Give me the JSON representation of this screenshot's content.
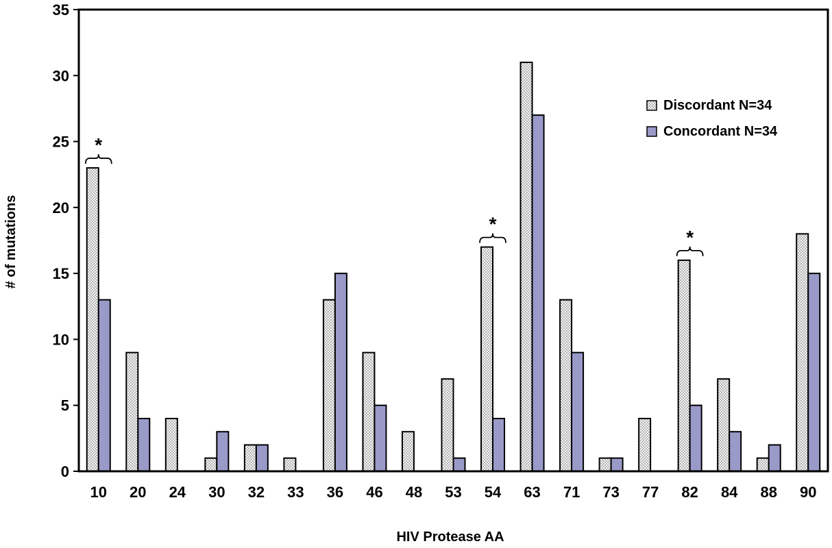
{
  "chart_data": {
    "type": "bar",
    "title": "",
    "xlabel": "HIV Protease AA",
    "ylabel": "# of mutations",
    "categories": [
      "10",
      "20",
      "24",
      "30",
      "32",
      "33",
      "36",
      "46",
      "48",
      "53",
      "54",
      "63",
      "71",
      "73",
      "77",
      "82",
      "84",
      "88",
      "90"
    ],
    "series": [
      {
        "name": "Discordant N=34",
        "pattern": "dotted",
        "color": "#f0f0f0",
        "values": [
          23,
          9,
          4,
          1,
          2,
          1,
          13,
          9,
          3,
          7,
          17,
          31,
          13,
          1,
          4,
          16,
          7,
          1,
          18
        ]
      },
      {
        "name": "Concordant N=34",
        "pattern": "solid",
        "color": "#9a9ac9",
        "values": [
          13,
          4,
          0,
          3,
          2,
          0,
          15,
          5,
          0,
          1,
          4,
          27,
          9,
          1,
          0,
          5,
          3,
          2,
          15
        ]
      }
    ],
    "ylim": [
      0,
      35
    ],
    "yticks": [
      "0",
      "5",
      "10",
      "15",
      "20",
      "25",
      "30",
      "35"
    ],
    "grid": false,
    "legend_position": "top-right",
    "annotations": [
      {
        "category": "10",
        "text": "*"
      },
      {
        "category": "54",
        "text": "*"
      },
      {
        "category": "82",
        "text": "*"
      }
    ]
  }
}
